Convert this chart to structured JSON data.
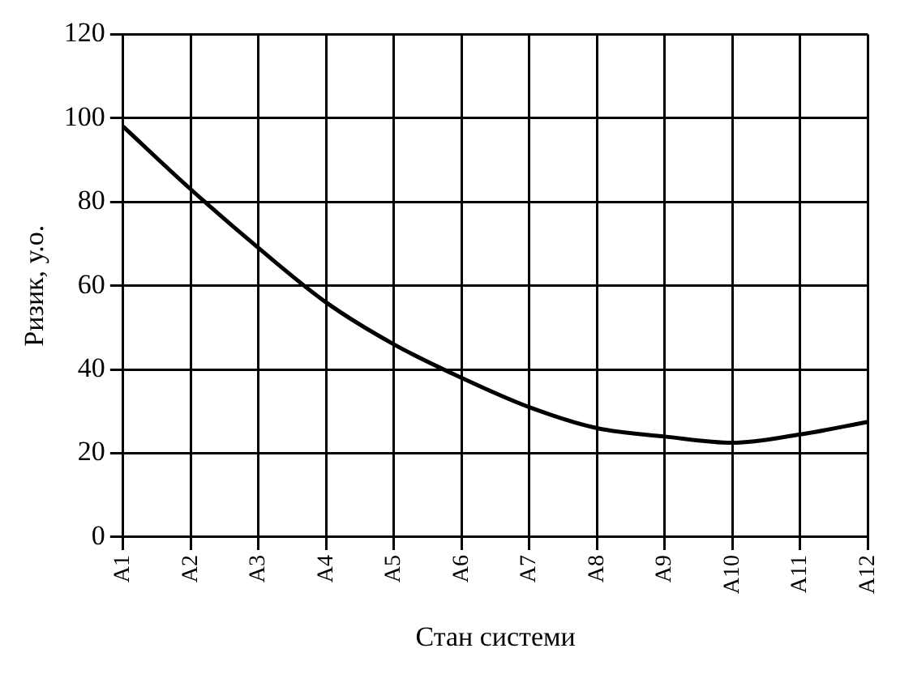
{
  "chart_data": {
    "type": "line",
    "xlabel": "Стан системи",
    "ylabel": "Ризик, у.о.",
    "categories": [
      "A1",
      "A2",
      "A3",
      "A4",
      "A5",
      "A6",
      "A7",
      "A8",
      "A9",
      "A10",
      "A11",
      "A12"
    ],
    "series": [
      {
        "color": "#000000",
        "values": [
          98,
          83,
          69,
          56,
          46,
          38,
          31,
          26,
          24,
          22.5,
          24.5,
          27.5
        ]
      }
    ],
    "ylim": [
      0,
      120
    ],
    "yticks": [
      0,
      20,
      40,
      60,
      80,
      100,
      120
    ],
    "grid": true,
    "legend": false,
    "marker": "none",
    "line_style": "solid"
  }
}
